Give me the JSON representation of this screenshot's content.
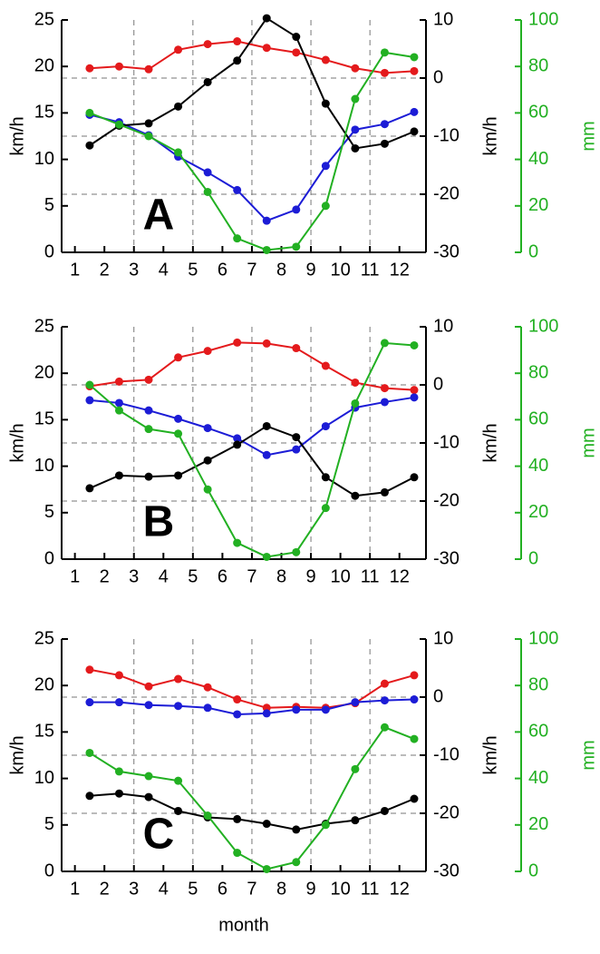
{
  "chart_data": [
    {
      "type": "line",
      "label": "A",
      "ylabel": "km/h",
      "y2label": "km/h",
      "y3label": "mm",
      "x": [
        1.5,
        2.5,
        3.5,
        4.5,
        5.5,
        6.5,
        7.5,
        8.5,
        9.5,
        10.5,
        11.5,
        12.5
      ],
      "xlim": [
        0.55,
        12.9
      ],
      "xticks": [
        1,
        2,
        3,
        4,
        5,
        6,
        7,
        8,
        9,
        10,
        11,
        12
      ],
      "xgrid": [
        3,
        5,
        7,
        9,
        11
      ],
      "ylim": [
        0,
        25
      ],
      "yticks": [
        0,
        5,
        10,
        15,
        20,
        25
      ],
      "y2lim": [
        -30,
        10
      ],
      "y2ticks": [
        -30,
        -20,
        -10,
        0,
        10
      ],
      "y3lim": [
        0,
        100
      ],
      "y3ticks": [
        0,
        20,
        40,
        60,
        80,
        100
      ],
      "grid": true,
      "series": [
        {
          "color": "#e41a1c",
          "axis": "y",
          "values": [
            19.8,
            20.0,
            19.7,
            21.8,
            22.4,
            22.7,
            22.0,
            21.5,
            20.7,
            19.8,
            19.3,
            19.5
          ]
        },
        {
          "color": "#1c1cd6",
          "axis": "y",
          "values": [
            14.8,
            14.0,
            12.6,
            10.3,
            8.6,
            6.7,
            3.4,
            4.6,
            9.3,
            13.2,
            13.8,
            15.1
          ]
        },
        {
          "color": "#000000",
          "axis": "y2",
          "values": [
            -11.6,
            -8.2,
            -7.8,
            -4.9,
            -0.7,
            3.0,
            10.3,
            7.1,
            -4.4,
            -12.1,
            -11.3,
            -9.2
          ]
        },
        {
          "color": "#22b022",
          "axis": "y3",
          "values": [
            60,
            55,
            50,
            43,
            26,
            6,
            1,
            2.4,
            20,
            66,
            86,
            84
          ]
        }
      ]
    },
    {
      "type": "line",
      "label": "B",
      "ylabel": "km/h",
      "y2label": "km/h",
      "y3label": "mm",
      "x": [
        1.5,
        2.5,
        3.5,
        4.5,
        5.5,
        6.5,
        7.5,
        8.5,
        9.5,
        10.5,
        11.5,
        12.5
      ],
      "xlim": [
        0.55,
        12.9
      ],
      "xticks": [
        1,
        2,
        3,
        4,
        5,
        6,
        7,
        8,
        9,
        10,
        11,
        12
      ],
      "xgrid": [
        3,
        5,
        7,
        9,
        11
      ],
      "ylim": [
        0,
        25
      ],
      "yticks": [
        0,
        5,
        10,
        15,
        20,
        25
      ],
      "y2lim": [
        -30,
        10
      ],
      "y2ticks": [
        -30,
        -20,
        -10,
        0,
        10
      ],
      "y3lim": [
        0,
        100
      ],
      "y3ticks": [
        0,
        20,
        40,
        60,
        80,
        100
      ],
      "grid": true,
      "series": [
        {
          "color": "#e41a1c",
          "axis": "y",
          "values": [
            18.6,
            19.1,
            19.3,
            21.7,
            22.4,
            23.3,
            23.2,
            22.7,
            20.8,
            19.0,
            18.4,
            18.2
          ]
        },
        {
          "color": "#1c1cd6",
          "axis": "y",
          "values": [
            17.1,
            16.8,
            16.0,
            15.1,
            14.1,
            13.0,
            11.2,
            11.8,
            14.3,
            16.3,
            16.9,
            17.4
          ]
        },
        {
          "color": "#000000",
          "axis": "y2",
          "values": [
            -17.8,
            -15.6,
            -15.8,
            -15.6,
            -13.0,
            -10.3,
            -7.1,
            -9.0,
            -15.9,
            -19.1,
            -18.5,
            -15.9
          ]
        },
        {
          "color": "#22b022",
          "axis": "y3",
          "values": [
            75,
            64,
            56,
            54,
            30,
            7,
            1,
            3,
            22,
            67,
            93,
            92
          ]
        }
      ]
    },
    {
      "type": "line",
      "label": "C",
      "ylabel": "km/h",
      "y2label": "km/h",
      "y3label": "mm",
      "xlabel": "month",
      "x": [
        1.5,
        2.5,
        3.5,
        4.5,
        5.5,
        6.5,
        7.5,
        8.5,
        9.5,
        10.5,
        11.5,
        12.5
      ],
      "xlim": [
        0.55,
        12.9
      ],
      "xticks": [
        1,
        2,
        3,
        4,
        5,
        6,
        7,
        8,
        9,
        10,
        11,
        12
      ],
      "xgrid": [
        3,
        5,
        7,
        9,
        11
      ],
      "ylim": [
        0,
        25
      ],
      "yticks": [
        0,
        5,
        10,
        15,
        20,
        25
      ],
      "y2lim": [
        -30,
        10
      ],
      "y2ticks": [
        -30,
        -20,
        -10,
        0,
        10
      ],
      "y3lim": [
        0,
        100
      ],
      "y3ticks": [
        0,
        20,
        40,
        60,
        80,
        100
      ],
      "grid": true,
      "series": [
        {
          "color": "#e41a1c",
          "axis": "y",
          "values": [
            21.7,
            21.1,
            19.9,
            20.7,
            19.8,
            18.5,
            17.6,
            17.7,
            17.6,
            18.1,
            20.2,
            21.1
          ]
        },
        {
          "color": "#1c1cd6",
          "axis": "y",
          "values": [
            18.2,
            18.2,
            17.9,
            17.8,
            17.6,
            16.9,
            17.0,
            17.4,
            17.4,
            18.2,
            18.4,
            18.5
          ]
        },
        {
          "color": "#000000",
          "axis": "y2",
          "values": [
            -17.0,
            -16.6,
            -17.2,
            -19.6,
            -20.7,
            -21.0,
            -21.8,
            -22.8,
            -21.8,
            -21.2,
            -19.6,
            -17.5
          ]
        },
        {
          "color": "#22b022",
          "axis": "y3",
          "values": [
            51,
            43,
            41,
            39,
            24,
            8,
            1,
            4,
            20,
            44,
            62,
            57
          ]
        }
      ]
    }
  ]
}
